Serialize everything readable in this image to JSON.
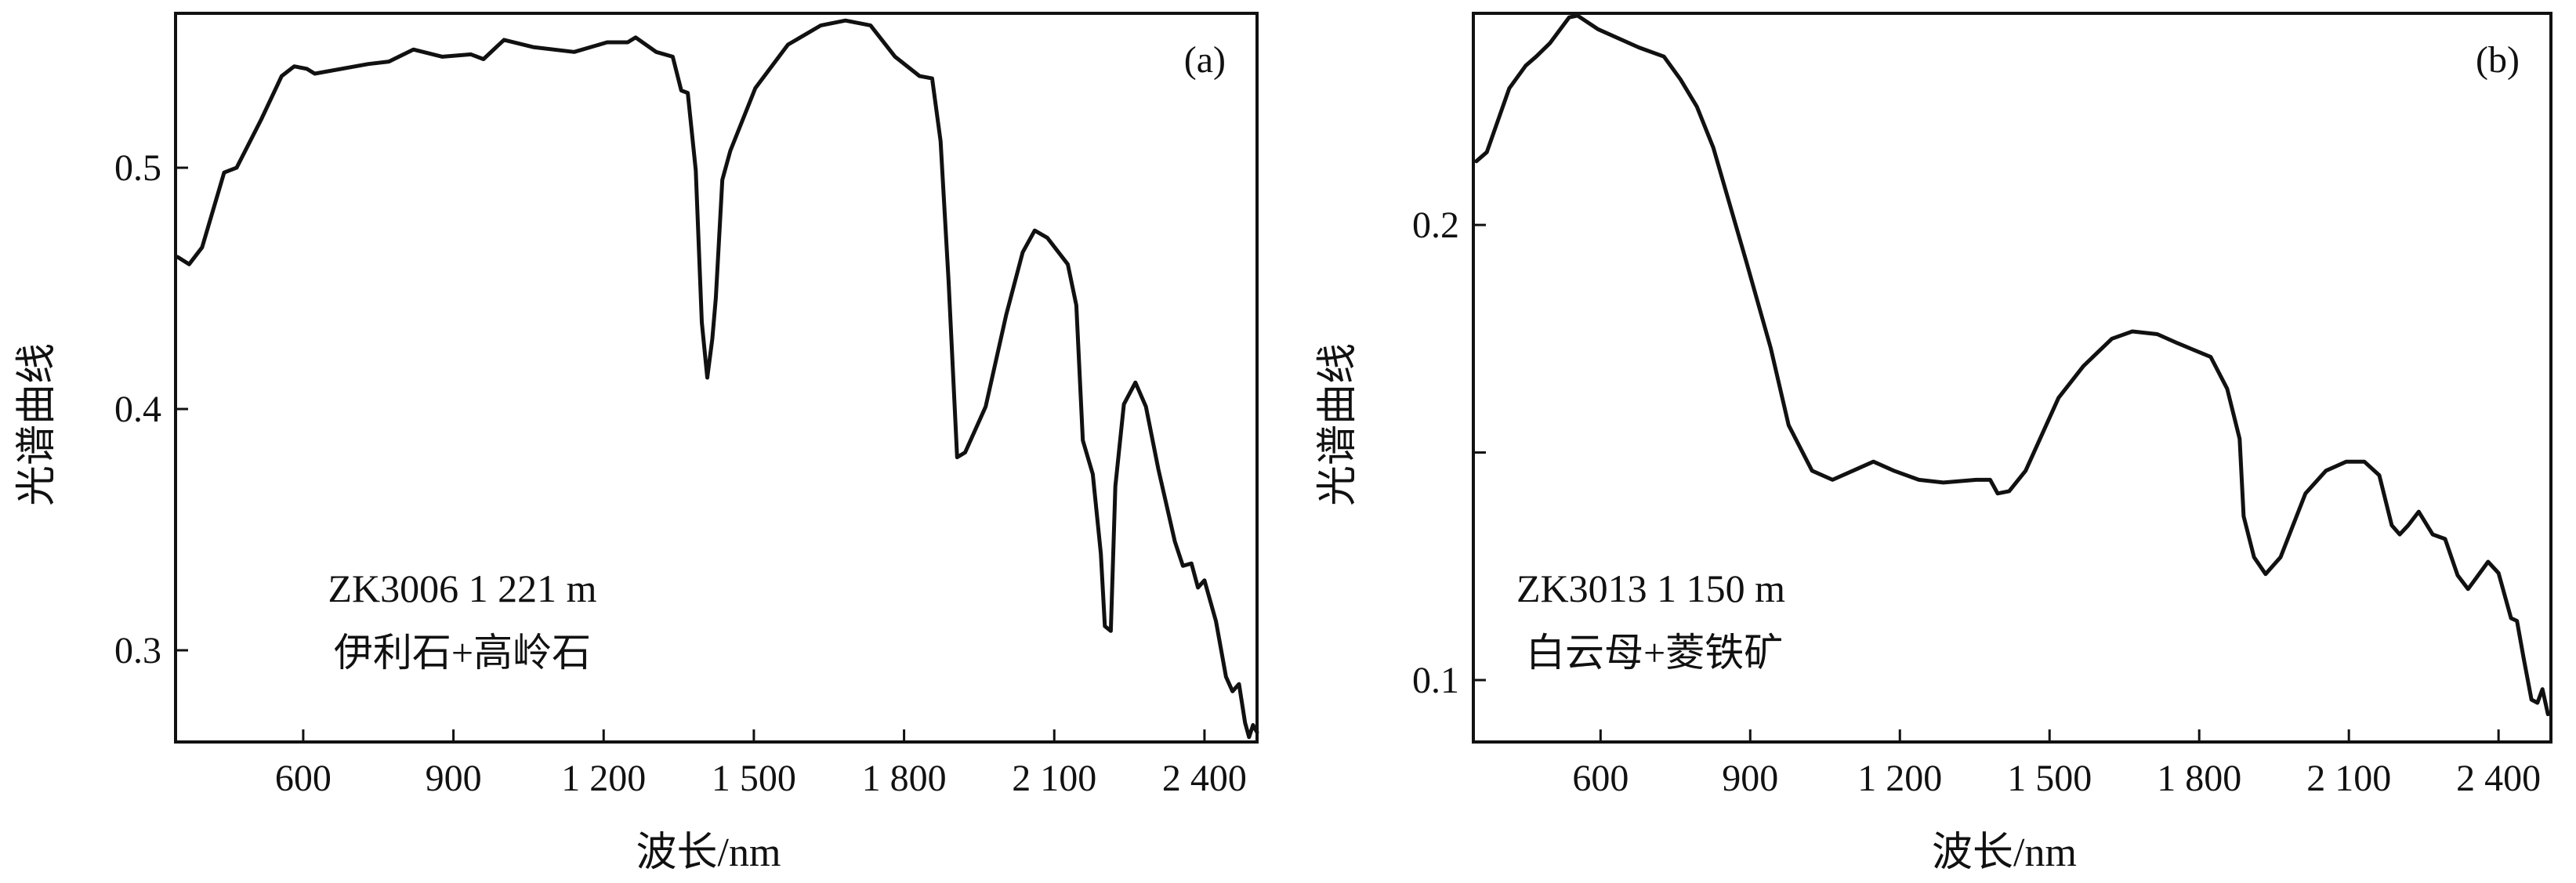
{
  "chart_data": [
    {
      "type": "line",
      "panel_label": "(a)",
      "annotation": [
        "ZK3006 1 221 m",
        "伊利石+高岭石"
      ],
      "xlabel": "波长/nm",
      "ylabel": "光谱曲线",
      "xlim": [
        345,
        2505
      ],
      "ylim": [
        0.262,
        0.564
      ],
      "xticks": [
        600,
        900,
        1200,
        1500,
        1800,
        2100,
        2400
      ],
      "xtick_labels": [
        "600",
        "900",
        "1 200",
        "1 500",
        "1 800",
        "2 100",
        "2 400"
      ],
      "yticks": [
        0.3,
        0.4,
        0.5
      ],
      "ytick_labels": [
        "0.3",
        "0.4",
        "0.5"
      ],
      "grid": false,
      "color": "#111111",
      "x": [
        349,
        372,
        398,
        442,
        467,
        516,
        557,
        582,
        607,
        623,
        730,
        771,
        820,
        878,
        935,
        960,
        1001,
        1059,
        1141,
        1207,
        1248,
        1264,
        1305,
        1338,
        1355,
        1368,
        1384,
        1396,
        1407,
        1417,
        1424,
        1437,
        1453,
        1503,
        1568,
        1634,
        1683,
        1733,
        1782,
        1831,
        1856,
        1873,
        1889,
        1906,
        1922,
        1963,
        2004,
        2037,
        2061,
        2086,
        2127,
        2144,
        2157,
        2177,
        2193,
        2201,
        2213,
        2222,
        2239,
        2262,
        2283,
        2308,
        2341,
        2357,
        2374,
        2387,
        2400,
        2423,
        2443,
        2456,
        2469,
        2481,
        2489,
        2497,
        2505
      ],
      "y": [
        0.463,
        0.46,
        0.467,
        0.498,
        0.5,
        0.52,
        0.538,
        0.542,
        0.541,
        0.539,
        0.543,
        0.544,
        0.549,
        0.546,
        0.547,
        0.545,
        0.553,
        0.55,
        0.548,
        0.552,
        0.552,
        0.554,
        0.548,
        0.546,
        0.532,
        0.531,
        0.499,
        0.436,
        0.413,
        0.429,
        0.446,
        0.495,
        0.507,
        0.533,
        0.551,
        0.559,
        0.561,
        0.559,
        0.546,
        0.538,
        0.537,
        0.511,
        0.453,
        0.38,
        0.382,
        0.401,
        0.439,
        0.465,
        0.474,
        0.471,
        0.46,
        0.443,
        0.387,
        0.373,
        0.34,
        0.31,
        0.308,
        0.368,
        0.402,
        0.411,
        0.401,
        0.375,
        0.345,
        0.335,
        0.336,
        0.326,
        0.329,
        0.312,
        0.289,
        0.283,
        0.286,
        0.27,
        0.264,
        0.269,
        0.266
      ]
    },
    {
      "type": "line",
      "panel_label": "(b)",
      "annotation": [
        "ZK3013 1 150 m",
        "白云母+菱铁矿"
      ],
      "xlabel": "波长/nm",
      "ylabel": "光谱曲线",
      "xlim": [
        345,
        2505
      ],
      "ylim": [
        0.0864,
        0.2465
      ],
      "xticks": [
        600,
        900,
        1200,
        1500,
        1800,
        2100,
        2400
      ],
      "xtick_labels": [
        "600",
        "900",
        "1 200",
        "1 500",
        "1 800",
        "2 100",
        "2 400"
      ],
      "yticks": [
        0.1,
        0.15,
        0.2
      ],
      "ytick_labels": [
        "0.1",
        "",
        "0.2"
      ],
      "grid": false,
      "color": "#111111",
      "x": [
        351,
        372,
        417,
        450,
        471,
        499,
        537,
        554,
        595,
        677,
        727,
        760,
        793,
        826,
        892,
        941,
        977,
        1024,
        1065,
        1106,
        1147,
        1188,
        1238,
        1287,
        1353,
        1381,
        1396,
        1419,
        1452,
        1518,
        1568,
        1625,
        1666,
        1716,
        1757,
        1823,
        1856,
        1881,
        1889,
        1910,
        1933,
        1963,
        2013,
        2054,
        2095,
        2131,
        2161,
        2186,
        2202,
        2219,
        2240,
        2268,
        2293,
        2318,
        2339,
        2359,
        2379,
        2400,
        2425,
        2437,
        2450,
        2466,
        2478,
        2488,
        2499
      ],
      "y": [
        0.214,
        0.216,
        0.23,
        0.235,
        0.237,
        0.24,
        0.2456,
        0.246,
        0.243,
        0.239,
        0.237,
        0.232,
        0.226,
        0.217,
        0.192,
        0.173,
        0.156,
        0.146,
        0.144,
        0.146,
        0.148,
        0.146,
        0.144,
        0.1434,
        0.144,
        0.144,
        0.141,
        0.1415,
        0.146,
        0.162,
        0.169,
        0.175,
        0.1766,
        0.176,
        0.174,
        0.171,
        0.164,
        0.153,
        0.136,
        0.127,
        0.1233,
        0.127,
        0.141,
        0.146,
        0.148,
        0.148,
        0.145,
        0.134,
        0.132,
        0.134,
        0.137,
        0.132,
        0.131,
        0.123,
        0.12,
        0.123,
        0.126,
        0.1235,
        0.1136,
        0.113,
        0.105,
        0.0957,
        0.095,
        0.098,
        0.0925
      ]
    }
  ]
}
